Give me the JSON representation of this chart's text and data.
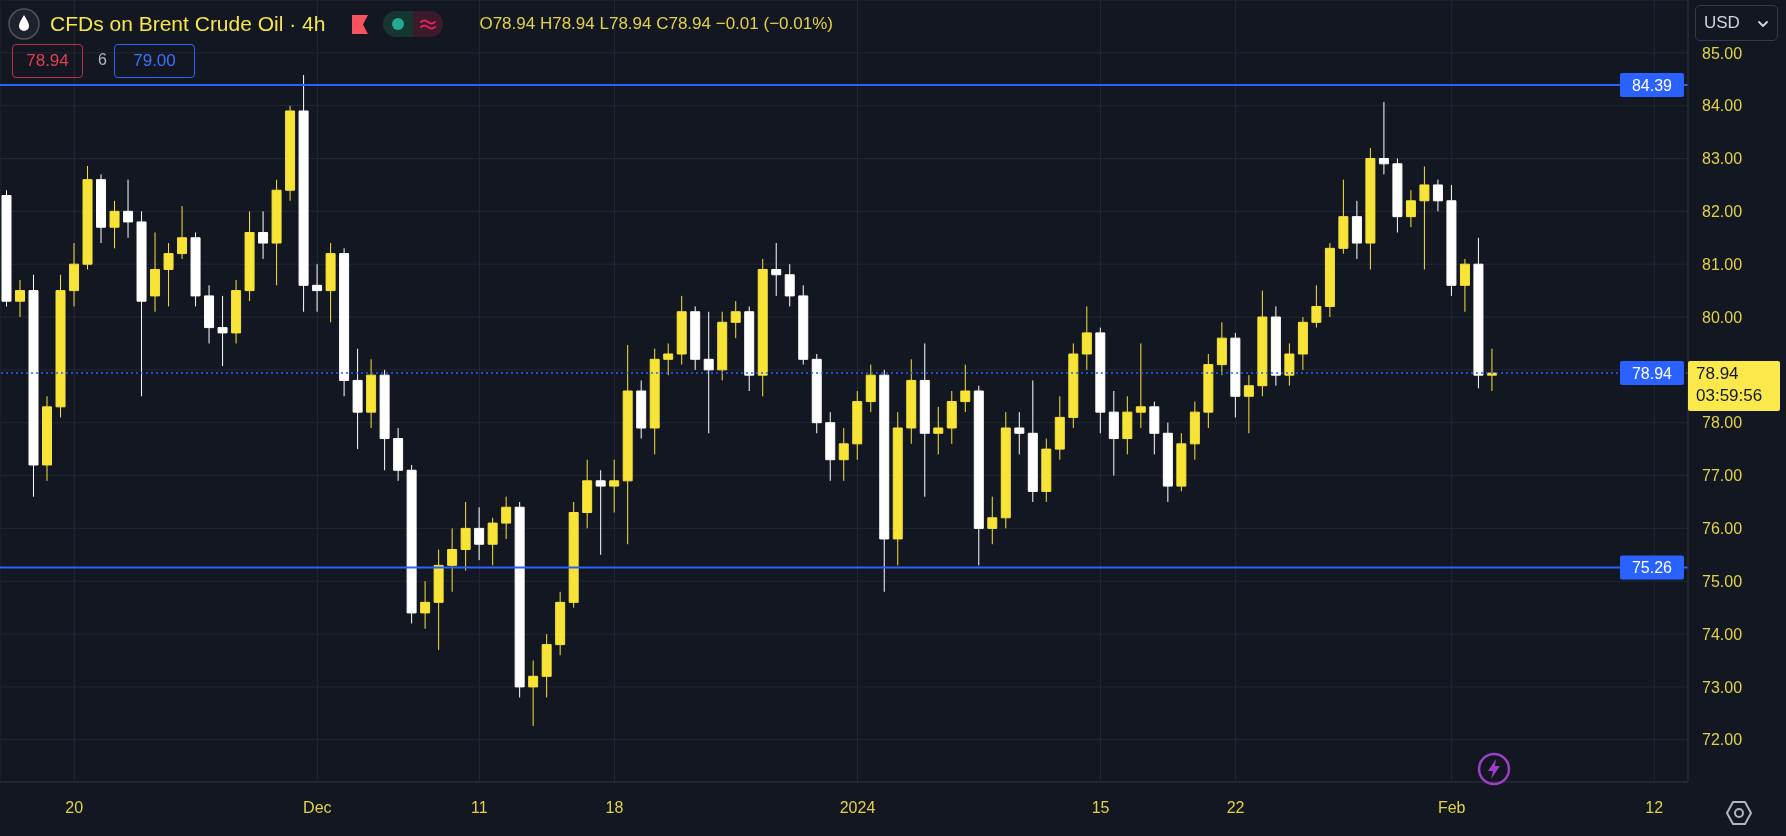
{
  "chart_data": {
    "type": "candlestick",
    "title": "CFDs on Brent Crude Oil · 4h",
    "categories": [
      null,
      null,
      null,
      null,
      null,
      "20",
      null,
      null,
      null,
      null,
      null,
      null,
      null,
      null,
      null,
      null,
      null,
      null,
      null,
      null,
      null,
      null,
      null,
      "Dec",
      null,
      null,
      null,
      null,
      null,
      null,
      null,
      null,
      null,
      null,
      null,
      "11",
      null,
      null,
      null,
      null,
      null,
      null,
      null,
      null,
      null,
      "18",
      null,
      null,
      null,
      null,
      null,
      null,
      null,
      null,
      null,
      null,
      null,
      null,
      null,
      null,
      null,
      null,
      null,
      "2024",
      null,
      null,
      null,
      null,
      null,
      null,
      null,
      null,
      null,
      null,
      null,
      null,
      null,
      null,
      null,
      null,
      null,
      "15",
      null,
      null,
      null,
      null,
      null,
      null,
      null,
      null,
      null,
      "22",
      null,
      null,
      null,
      null,
      null,
      null,
      null,
      null,
      null,
      null,
      null,
      null,
      null,
      null,
      null,
      "Feb",
      null,
      null,
      null,
      null,
      null,
      null,
      null,
      null,
      null,
      null,
      null,
      null,
      null,
      null,
      "12",
      null,
      null
    ],
    "ohlc": [
      [
        82.3,
        82.4,
        80.2,
        80.3
      ],
      [
        80.3,
        80.7,
        80.0,
        80.5
      ],
      [
        80.5,
        80.8,
        76.6,
        77.2
      ],
      [
        77.2,
        78.5,
        76.9,
        78.3
      ],
      [
        78.3,
        80.8,
        78.1,
        80.5
      ],
      [
        80.5,
        81.4,
        80.2,
        81.0
      ],
      [
        81.0,
        82.86,
        80.9,
        82.6
      ],
      [
        82.6,
        82.7,
        81.4,
        81.7
      ],
      [
        81.7,
        82.2,
        81.3,
        82.0
      ],
      [
        82.0,
        82.6,
        81.5,
        81.8
      ],
      [
        81.8,
        82.0,
        78.5,
        80.3
      ],
      [
        80.4,
        81.6,
        80.1,
        80.9
      ],
      [
        80.9,
        81.4,
        80.2,
        81.2
      ],
      [
        81.2,
        82.1,
        81.1,
        81.5
      ],
      [
        81.5,
        81.6,
        80.2,
        80.4
      ],
      [
        80.4,
        80.6,
        79.5,
        79.8
      ],
      [
        79.8,
        80.4,
        79.07,
        79.7
      ],
      [
        79.7,
        80.7,
        79.5,
        80.5
      ],
      [
        80.5,
        82.0,
        80.3,
        81.6
      ],
      [
        81.6,
        82.0,
        81.1,
        81.4
      ],
      [
        81.4,
        82.6,
        80.6,
        82.4
      ],
      [
        82.4,
        84.0,
        82.2,
        83.9
      ],
      [
        83.9,
        84.58,
        80.1,
        80.6
      ],
      [
        80.6,
        81.0,
        80.1,
        80.5
      ],
      [
        80.5,
        81.4,
        79.9,
        81.2
      ],
      [
        81.2,
        81.3,
        78.5,
        78.8
      ],
      [
        78.8,
        79.4,
        77.5,
        78.2
      ],
      [
        78.2,
        79.2,
        77.9,
        78.9
      ],
      [
        78.9,
        79.0,
        77.1,
        77.7
      ],
      [
        77.7,
        77.9,
        76.9,
        77.1
      ],
      [
        77.1,
        77.2,
        74.2,
        74.4
      ],
      [
        74.4,
        75.0,
        74.1,
        74.6
      ],
      [
        74.6,
        75.6,
        73.7,
        75.3
      ],
      [
        75.3,
        76.0,
        74.8,
        75.6
      ],
      [
        75.6,
        76.5,
        75.2,
        76.0
      ],
      [
        76.0,
        76.4,
        75.4,
        75.7
      ],
      [
        75.7,
        76.2,
        75.3,
        76.1
      ],
      [
        76.1,
        76.6,
        75.8,
        76.4
      ],
      [
        76.4,
        76.5,
        72.8,
        73.0
      ],
      [
        73.0,
        73.5,
        72.26,
        73.2
      ],
      [
        73.2,
        74.0,
        72.8,
        73.8
      ],
      [
        73.8,
        74.8,
        73.6,
        74.6
      ],
      [
        74.6,
        76.5,
        74.5,
        76.3
      ],
      [
        76.3,
        77.3,
        76.0,
        76.9
      ],
      [
        76.9,
        77.1,
        75.5,
        76.8
      ],
      [
        76.8,
        77.3,
        76.3,
        76.9
      ],
      [
        76.9,
        79.47,
        75.7,
        78.6
      ],
      [
        78.6,
        78.8,
        77.7,
        77.9
      ],
      [
        77.9,
        79.4,
        77.4,
        79.2
      ],
      [
        79.2,
        79.5,
        78.9,
        79.3
      ],
      [
        79.3,
        80.4,
        79.1,
        80.1
      ],
      [
        80.1,
        80.2,
        79.0,
        79.2
      ],
      [
        79.2,
        80.1,
        77.8,
        79.0
      ],
      [
        79.0,
        80.1,
        78.8,
        79.9
      ],
      [
        79.9,
        80.3,
        79.6,
        80.1
      ],
      [
        80.1,
        80.2,
        78.6,
        78.9
      ],
      [
        78.9,
        81.1,
        78.5,
        80.9
      ],
      [
        80.9,
        81.4,
        80.4,
        80.8
      ],
      [
        80.8,
        81.0,
        80.2,
        80.4
      ],
      [
        80.4,
        80.6,
        79.1,
        79.2
      ],
      [
        79.2,
        79.3,
        77.8,
        78.0
      ],
      [
        78.0,
        78.2,
        76.9,
        77.3
      ],
      [
        77.3,
        77.9,
        76.9,
        77.6
      ],
      [
        77.6,
        78.6,
        77.3,
        78.4
      ],
      [
        78.4,
        79.1,
        78.2,
        78.9
      ],
      [
        78.9,
        79.0,
        74.8,
        75.8
      ],
      [
        75.8,
        78.2,
        75.3,
        77.9
      ],
      [
        77.9,
        79.2,
        77.6,
        78.8
      ],
      [
        78.8,
        79.5,
        76.6,
        77.8
      ],
      [
        77.8,
        78.3,
        77.4,
        77.9
      ],
      [
        77.9,
        78.6,
        77.6,
        78.4
      ],
      [
        78.4,
        79.1,
        78.2,
        78.6
      ],
      [
        78.6,
        78.7,
        75.3,
        76.0
      ],
      [
        76.0,
        76.6,
        75.7,
        76.2
      ],
      [
        76.2,
        78.2,
        76.0,
        77.9
      ],
      [
        77.9,
        78.2,
        77.4,
        77.8
      ],
      [
        77.8,
        78.8,
        76.5,
        76.7
      ],
      [
        76.7,
        77.7,
        76.5,
        77.5
      ],
      [
        77.5,
        78.5,
        77.3,
        78.1
      ],
      [
        78.1,
        79.5,
        77.9,
        79.3
      ],
      [
        79.3,
        80.2,
        79.0,
        79.7
      ],
      [
        79.7,
        79.8,
        77.8,
        78.2
      ],
      [
        78.2,
        78.6,
        77.0,
        77.7
      ],
      [
        77.7,
        78.5,
        77.4,
        78.2
      ],
      [
        78.2,
        79.5,
        77.9,
        78.3
      ],
      [
        78.3,
        78.4,
        77.4,
        77.8
      ],
      [
        77.8,
        78.0,
        76.5,
        76.8
      ],
      [
        76.8,
        77.8,
        76.7,
        77.6
      ],
      [
        77.6,
        78.4,
        77.3,
        78.2
      ],
      [
        78.2,
        79.3,
        77.9,
        79.1
      ],
      [
        79.1,
        79.9,
        78.9,
        79.6
      ],
      [
        79.6,
        79.7,
        78.1,
        78.5
      ],
      [
        78.5,
        78.9,
        77.8,
        78.7
      ],
      [
        78.7,
        80.5,
        78.5,
        80.0
      ],
      [
        80.0,
        80.2,
        78.7,
        78.9
      ],
      [
        78.9,
        79.5,
        78.7,
        79.3
      ],
      [
        79.3,
        80.0,
        79.0,
        79.9
      ],
      [
        79.9,
        80.6,
        79.8,
        80.2
      ],
      [
        80.2,
        81.4,
        80.0,
        81.3
      ],
      [
        81.3,
        82.6,
        81.2,
        81.9
      ],
      [
        81.9,
        82.2,
        81.1,
        81.4
      ],
      [
        81.4,
        83.2,
        80.9,
        83.0
      ],
      [
        83.0,
        84.07,
        82.7,
        82.9
      ],
      [
        82.9,
        83.0,
        81.6,
        81.9
      ],
      [
        81.9,
        82.4,
        81.7,
        82.2
      ],
      [
        82.2,
        82.85,
        80.9,
        82.5
      ],
      [
        82.5,
        82.6,
        82.0,
        82.2
      ],
      [
        82.2,
        82.5,
        80.4,
        80.6
      ],
      [
        80.6,
        81.1,
        80.1,
        81.0
      ],
      [
        81.0,
        81.5,
        78.65,
        78.9
      ],
      [
        78.9,
        79.4,
        78.6,
        78.94
      ],
      null,
      null,
      null,
      null,
      null,
      null,
      null,
      null,
      null,
      null,
      null,
      null,
      null,
      null
    ],
    "colors": [
      "#ffffff",
      "#f7e436",
      "#ffffff",
      "#f7e436",
      "#f7e436",
      "#f7e436",
      "#f7e436",
      "#ffffff",
      "#f7e436",
      "#ffffff",
      "#ffffff",
      "#f7e436",
      "#f7e436",
      "#f7e436",
      "#ffffff",
      "#ffffff",
      "#ffffff",
      "#f7e436",
      "#f7e436",
      "#ffffff",
      "#f7e436",
      "#f7e436",
      "#ffffff",
      "#ffffff",
      "#f7e436",
      "#ffffff",
      "#ffffff",
      "#f7e436",
      "#ffffff",
      "#ffffff",
      "#ffffff",
      "#f7e436",
      "#f7e436",
      "#f7e436",
      "#f7e436",
      "#ffffff",
      "#f7e436",
      "#f7e436",
      "#ffffff",
      "#f7e436",
      "#f7e436",
      "#f7e436",
      "#f7e436",
      "#f7e436",
      "#ffffff",
      "#f7e436",
      "#f7e436",
      "#ffffff",
      "#f7e436",
      "#f7e436",
      "#f7e436",
      "#ffffff",
      "#ffffff",
      "#f7e436",
      "#f7e436",
      "#ffffff",
      "#f7e436",
      "#ffffff",
      "#ffffff",
      "#ffffff",
      "#ffffff",
      "#ffffff",
      "#f7e436",
      "#f7e436",
      "#f7e436",
      "#ffffff",
      "#f7e436",
      "#f7e436",
      "#ffffff",
      "#f7e436",
      "#f7e436",
      "#f7e436",
      "#ffffff",
      "#f7e436",
      "#f7e436",
      "#ffffff",
      "#ffffff",
      "#f7e436",
      "#f7e436",
      "#f7e436",
      "#f7e436",
      "#ffffff",
      "#ffffff",
      "#f7e436",
      "#f7e436",
      "#ffffff",
      "#ffffff",
      "#f7e436",
      "#f7e436",
      "#f7e436",
      "#f7e436",
      "#ffffff",
      "#f7e436",
      "#f7e436",
      "#ffffff",
      "#f7e436",
      "#f7e436",
      "#f7e436",
      "#f7e436",
      "#f7e436",
      "#ffffff",
      "#f7e436",
      "#ffffff",
      "#ffffff",
      "#f7e436",
      "#f7e436",
      "#ffffff",
      "#ffffff",
      "#f7e436",
      "#ffffff",
      "#f7e436",
      null,
      null,
      null,
      null,
      null,
      null,
      null,
      null,
      null,
      null,
      null,
      null,
      null,
      null
    ],
    "ylim": [
      71.2,
      86.0
    ],
    "yticks": [
      {
        "value": 72,
        "label": "72.00"
      },
      {
        "value": 73,
        "label": "73.00"
      },
      {
        "value": 74,
        "label": "74.00"
      },
      {
        "value": 75,
        "label": "75.00"
      },
      {
        "value": 76,
        "label": "76.00"
      },
      {
        "value": 77,
        "label": "77.00"
      },
      {
        "value": 78,
        "label": "78.00"
      },
      {
        "value": 79,
        "label": null
      },
      {
        "value": 80,
        "label": "80.00"
      },
      {
        "value": 81,
        "label": "81.00"
      },
      {
        "value": 82,
        "label": "82.00"
      },
      {
        "value": 83,
        "label": "83.00"
      },
      {
        "value": 84,
        "label": "84.00"
      },
      {
        "value": 85,
        "label": "85.00"
      }
    ],
    "grid": true,
    "ref_lines": [
      {
        "axis": "y",
        "value": 84.39,
        "label": "84.39",
        "color": "#2962ff"
      },
      {
        "axis": "y",
        "value": 75.26,
        "label": "75.26",
        "color": "#2962ff"
      },
      {
        "axis": "y",
        "value": 78.94,
        "label": "78.94",
        "color": "#2962ff",
        "line_style": "dotted"
      }
    ],
    "annotations": [
      "O78.94 H78.94 L78.94 C78.94 −0.01 (−0.01%)",
      "78.94",
      "6",
      "79.00",
      "USD",
      "78.94",
      "03:59:56"
    ]
  }
}
